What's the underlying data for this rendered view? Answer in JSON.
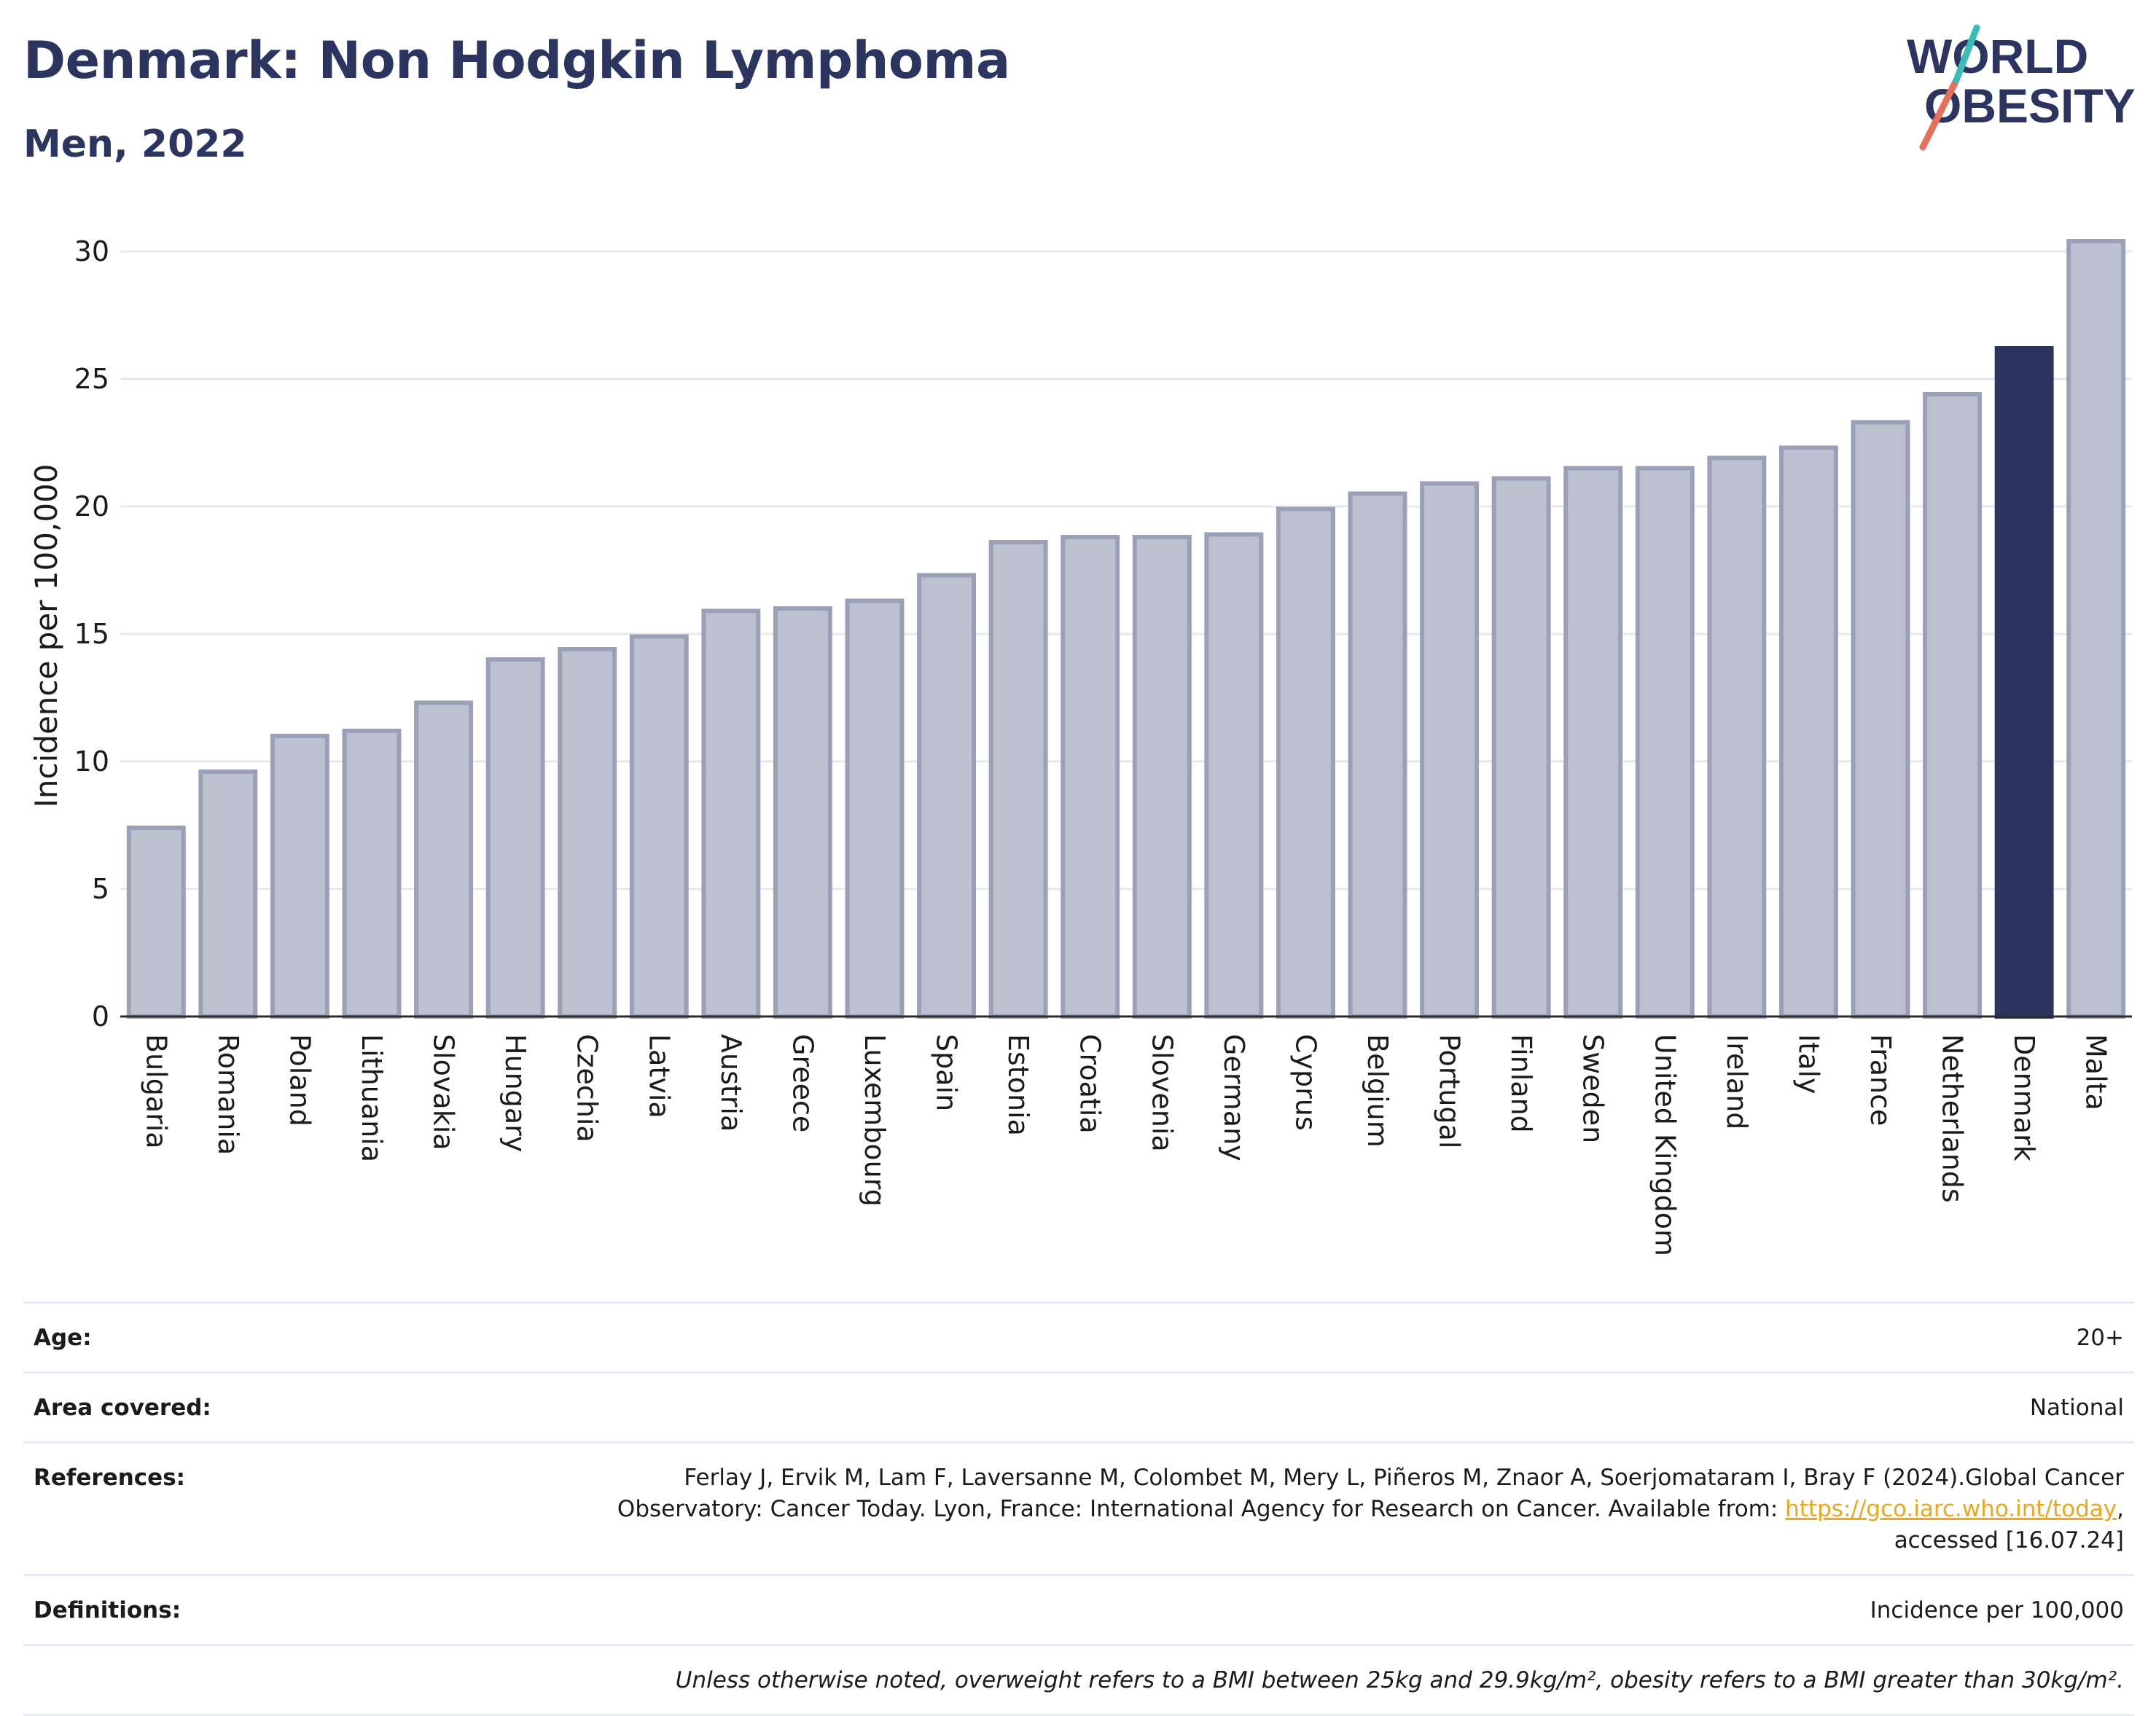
{
  "header": {
    "title": "Denmark: Non Hodgkin Lymphoma",
    "subtitle": "Men, 2022"
  },
  "logo": {
    "line1": "WORLD",
    "line2": "OBESITY"
  },
  "colors": {
    "bar_default": "#bdc1cf",
    "bar_border": "#9aa0b8",
    "bar_highlight": "#2b3560",
    "grid": "#e6e8ef",
    "text_dark": "#2b3560",
    "link": "#e9a820"
  },
  "chart_data": {
    "type": "bar",
    "ylabel": "Incidence per 100,000",
    "ylim": [
      0,
      31
    ],
    "yticks": [
      0,
      5,
      10,
      15,
      20,
      25,
      30
    ],
    "grid": true,
    "highlight": "Denmark",
    "categories": [
      "Bulgaria",
      "Romania",
      "Poland",
      "Lithuania",
      "Slovakia",
      "Hungary",
      "Czechia",
      "Latvia",
      "Austria",
      "Greece",
      "Luxembourg",
      "Spain",
      "Estonia",
      "Croatia",
      "Slovenia",
      "Germany",
      "Cyprus",
      "Belgium",
      "Portugal",
      "Finland",
      "Sweden",
      "United Kingdom",
      "Ireland",
      "Italy",
      "France",
      "Netherlands",
      "Denmark",
      "Malta"
    ],
    "values": [
      7.4,
      9.6,
      11.0,
      11.2,
      12.3,
      14.0,
      14.4,
      14.9,
      15.9,
      16.0,
      16.3,
      17.3,
      18.6,
      18.8,
      18.8,
      18.9,
      19.9,
      20.5,
      20.9,
      21.1,
      21.5,
      21.5,
      21.9,
      22.3,
      23.3,
      24.4,
      26.2,
      30.4
    ]
  },
  "info": {
    "age_label": "Age:",
    "age_value": "20+",
    "area_label": "Area covered:",
    "area_value": "National",
    "references_label": "References:",
    "references_line1": "Ferlay J, Ervik M, Lam F, Laversanne M, Colombet M, Mery L, Piñeros M, Znaor A, Soerjomataram I, Bray F (2024).Global Cancer",
    "references_line2": "Observatory: Cancer Today. Lyon, France: International Agency for Research on Cancer. Available from: ",
    "references_link": "https://gco.iarc.who.int/today",
    "references_line2_end": ",",
    "references_line3": "accessed [16.07.24]",
    "definitions_label": "Definitions:",
    "definitions_value": "Incidence per 100,000",
    "note": "Unless otherwise noted, overweight refers to a BMI between 25kg and 29.9kg/m², obesity refers to a BMI greater than 30kg/m²."
  }
}
